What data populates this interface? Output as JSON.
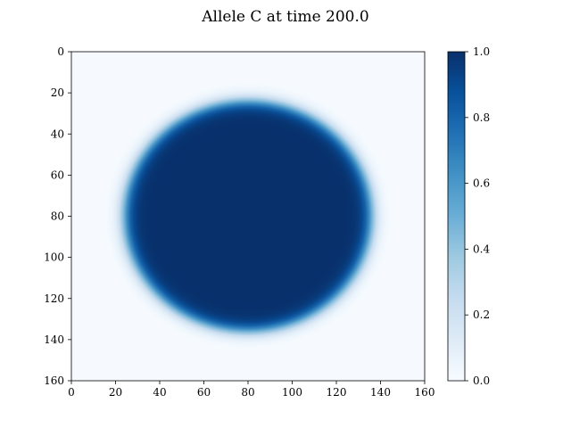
{
  "chart_data": [
    {
      "type": "heatmap",
      "title": "Allele C at time 200.0",
      "xlabel": "",
      "ylabel": "",
      "xlim": [
        0,
        160
      ],
      "ylim": [
        160,
        0
      ],
      "x_ticks": [
        "0",
        "20",
        "40",
        "60",
        "80",
        "100",
        "120",
        "140",
        "160"
      ],
      "y_ticks": [
        "0",
        "20",
        "40",
        "60",
        "80",
        "100",
        "120",
        "140",
        "160"
      ],
      "colormap": "Blues",
      "grid": false,
      "field": {
        "shape": "disk",
        "center": [
          80,
          80
        ],
        "radius": 56,
        "edge_width": 3.5,
        "value_inside": 1.0,
        "value_outside": 0.0
      }
    },
    {
      "type": "colorbar",
      "range": [
        0.0,
        1.0
      ],
      "ticks": [
        "0.0",
        "0.2",
        "0.4",
        "0.6",
        "0.8",
        "1.0"
      ],
      "colors": [
        "#f7fbff",
        "#deebf7",
        "#c6dbef",
        "#9ecae1",
        "#6baed6",
        "#4292c6",
        "#2171b5",
        "#08519c",
        "#08306b"
      ]
    }
  ]
}
